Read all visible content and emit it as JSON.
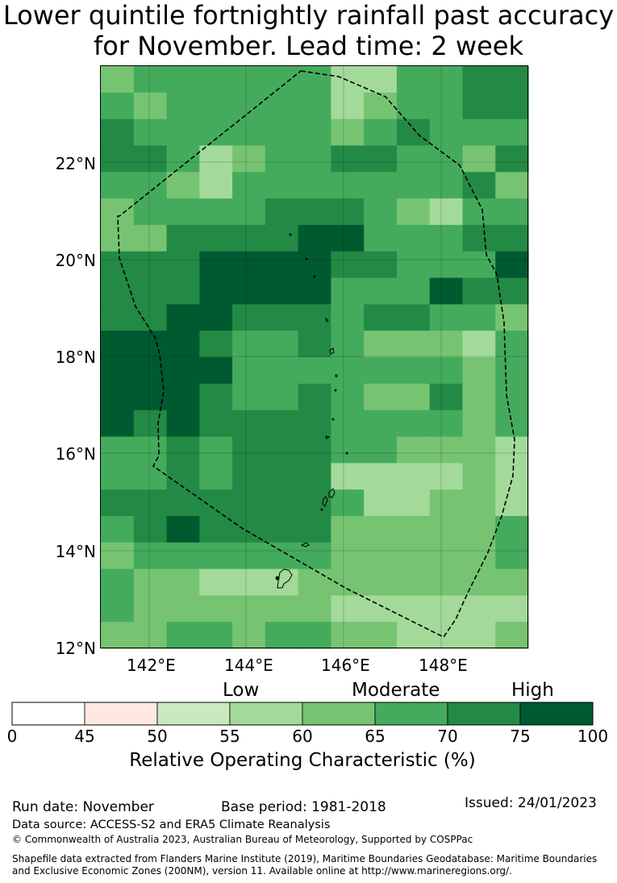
{
  "title": {
    "line1": "Lower quintile fortnightly rainfall past accuracy",
    "line2": "for November. Lead time: 2 week"
  },
  "map": {
    "lat_labels": [
      "22°N",
      "20°N",
      "18°N",
      "16°N",
      "14°N",
      "12°N"
    ],
    "lon_labels": [
      "142°E",
      "144°E",
      "146°E",
      "148°E"
    ],
    "lon_range": [
      141,
      149.8
    ],
    "lat_range": [
      12,
      24
    ],
    "grid": [
      [
        4,
        5,
        5,
        5,
        5,
        5,
        5,
        3,
        3,
        5,
        5,
        6,
        6
      ],
      [
        5,
        4,
        5,
        5,
        5,
        5,
        5,
        3,
        4,
        5,
        5,
        6,
        6
      ],
      [
        6,
        5,
        5,
        5,
        5,
        5,
        5,
        4,
        5,
        6,
        5,
        5,
        5
      ],
      [
        6,
        6,
        5,
        3,
        4,
        5,
        5,
        6,
        6,
        5,
        5,
        4,
        6
      ],
      [
        5,
        5,
        4,
        3,
        5,
        5,
        5,
        5,
        5,
        5,
        5,
        6,
        4
      ],
      [
        4,
        5,
        5,
        5,
        5,
        6,
        6,
        6,
        5,
        4,
        3,
        5,
        5
      ],
      [
        4,
        4,
        6,
        6,
        6,
        6,
        7,
        7,
        5,
        5,
        5,
        6,
        6
      ],
      [
        6,
        6,
        6,
        7,
        7,
        7,
        7,
        6,
        6,
        5,
        5,
        5,
        7
      ],
      [
        6,
        6,
        6,
        7,
        7,
        7,
        7,
        5,
        5,
        5,
        7,
        6,
        6
      ],
      [
        6,
        6,
        7,
        7,
        6,
        6,
        6,
        5,
        6,
        6,
        5,
        5,
        4
      ],
      [
        7,
        7,
        7,
        6,
        5,
        5,
        6,
        5,
        4,
        4,
        4,
        3,
        5
      ],
      [
        7,
        7,
        7,
        7,
        5,
        5,
        5,
        5,
        5,
        5,
        5,
        4,
        5
      ],
      [
        7,
        7,
        7,
        6,
        5,
        5,
        6,
        5,
        4,
        4,
        6,
        4,
        5
      ],
      [
        7,
        6,
        7,
        6,
        6,
        6,
        6,
        5,
        5,
        5,
        5,
        4,
        5
      ],
      [
        5,
        5,
        6,
        5,
        6,
        6,
        6,
        5,
        5,
        4,
        4,
        4,
        3
      ],
      [
        5,
        5,
        6,
        5,
        6,
        6,
        6,
        3,
        3,
        3,
        3,
        4,
        3
      ],
      [
        6,
        6,
        6,
        6,
        6,
        6,
        6,
        5,
        3,
        3,
        4,
        4,
        3
      ],
      [
        5,
        6,
        7,
        6,
        6,
        6,
        6,
        4,
        4,
        4,
        4,
        4,
        5
      ],
      [
        4,
        5,
        5,
        5,
        5,
        5,
        5,
        4,
        4,
        4,
        4,
        4,
        5
      ],
      [
        5,
        4,
        4,
        3,
        3,
        3,
        4,
        4,
        4,
        4,
        4,
        4,
        4
      ],
      [
        5,
        4,
        4,
        4,
        4,
        4,
        4,
        3,
        3,
        3,
        3,
        3,
        3
      ],
      [
        4,
        4,
        5,
        5,
        4,
        5,
        5,
        4,
        4,
        3,
        3,
        3,
        4
      ]
    ]
  },
  "colorbar": {
    "colors": [
      "#ffffff",
      "#fee8e0",
      "#c9e9c0",
      "#a3da9a",
      "#76c472",
      "#44ab5d",
      "#238a45",
      "#005a30"
    ],
    "ticks": [
      "0",
      "45",
      "50",
      "55",
      "60",
      "65",
      "70",
      "75",
      "100"
    ],
    "category_labels": [
      "Low",
      "Moderate",
      "High"
    ],
    "title": "Relative Operating Characteristic (%)"
  },
  "footer": {
    "run_date": "Run date: November",
    "base_period": "Base period: 1981-2018",
    "issued": "Issued: 24/01/2023",
    "data_source": "Data source: ACCESS-S2 and ERA5 Climate Reanalysis",
    "copyright": "© Commonwealth of Australia 2023, Australian Bureau of Meteorology, Supported by COSPPac",
    "shapefile_line1": "Shapefile data extracted from Flanders Marine Institute (2019), Maritime Boundaries Geodatabase: Maritime Boundaries",
    "shapefile_line2": "and Exclusive Economic Zones (200NM), version 11. Available online at http://www.marineregions.org/."
  }
}
